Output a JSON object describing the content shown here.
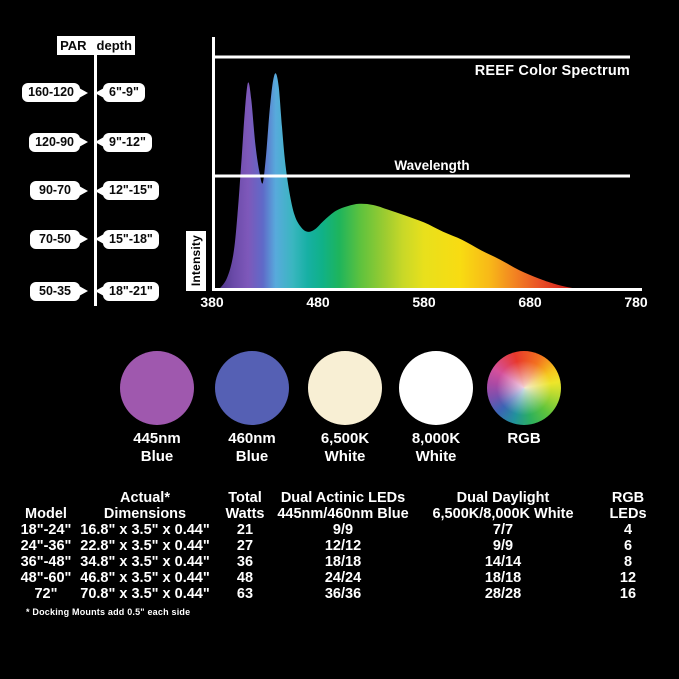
{
  "page": {
    "background": "#000000",
    "text_color": "#ffffff"
  },
  "par_diagram": {
    "header": {
      "par": "PAR",
      "depth": "depth"
    },
    "rows": [
      {
        "par": "160-120",
        "depth": "6\"-9\""
      },
      {
        "par": "120-90",
        "depth": "9\"-12\""
      },
      {
        "par": "90-70",
        "depth": "12\"-15\""
      },
      {
        "par": "70-50",
        "depth": "15\"-18\""
      },
      {
        "par": "50-35",
        "depth": "18\"-21\""
      }
    ]
  },
  "chart_data": {
    "type": "area",
    "title": "REEF Color Spectrum",
    "xlabel": "Wavelength",
    "ylabel": "Intensity",
    "xlim": [
      380,
      780
    ],
    "ylim": [
      0,
      1
    ],
    "x_ticks": [
      380,
      480,
      580,
      680,
      780
    ],
    "grid": false,
    "legend": "none",
    "reference_lines": [
      {
        "intensity": 1.0,
        "label": ""
      },
      {
        "intensity": 0.49,
        "label": "Wavelength"
      }
    ],
    "series": [
      {
        "name": "reef-spectrum-intensity",
        "x": [
          386,
          394,
          400,
          404,
          408,
          411,
          414,
          417,
          421,
          425,
          428,
          431,
          434,
          437,
          440,
          443,
          446,
          449,
          453,
          458,
          464,
          470,
          477,
          486,
          497,
          508,
          519,
          532,
          546,
          562,
          580,
          598,
          616,
          634,
          652,
          670,
          688,
          702,
          716,
          728,
          736
        ],
        "y": [
          0,
          0.05,
          0.15,
          0.32,
          0.57,
          0.77,
          0.89,
          0.82,
          0.62,
          0.5,
          0.46,
          0.58,
          0.75,
          0.88,
          0.93,
          0.87,
          0.7,
          0.55,
          0.42,
          0.32,
          0.27,
          0.25,
          0.26,
          0.3,
          0.34,
          0.36,
          0.37,
          0.365,
          0.345,
          0.32,
          0.29,
          0.25,
          0.215,
          0.17,
          0.13,
          0.085,
          0.05,
          0.028,
          0.012,
          0.004,
          0
        ]
      }
    ],
    "gradient_stops": [
      [
        0.0,
        "#3f2a78"
      ],
      [
        0.05,
        "#6a4aa8"
      ],
      [
        0.085,
        "#7e58ba"
      ],
      [
        0.12,
        "#5f6ac8"
      ],
      [
        0.15,
        "#58aadc"
      ],
      [
        0.19,
        "#3ab6c0"
      ],
      [
        0.225,
        "#17b0a4"
      ],
      [
        0.26,
        "#10b188"
      ],
      [
        0.3,
        "#1eb45c"
      ],
      [
        0.35,
        "#5ec23e"
      ],
      [
        0.41,
        "#9ecc30"
      ],
      [
        0.45,
        "#c8d828"
      ],
      [
        0.5,
        "#e8e01c"
      ],
      [
        0.585,
        "#f8dc12"
      ],
      [
        0.655,
        "#f8b818"
      ],
      [
        0.715,
        "#f28222"
      ],
      [
        0.775,
        "#e84f26"
      ],
      [
        0.82,
        "#da2d1f"
      ],
      [
        0.9,
        "#c01616"
      ]
    ],
    "axis_color": "#ffffff"
  },
  "led_circles": [
    {
      "label_line1": "445nm",
      "label_line2": "Blue",
      "color": "#9f58ae",
      "type": "solid"
    },
    {
      "label_line1": "460nm",
      "label_line2": "Blue",
      "color": "#5560b4",
      "type": "solid"
    },
    {
      "label_line1": "6,500K",
      "label_line2": "White",
      "color": "#f8efd4",
      "type": "solid"
    },
    {
      "label_line1": "8,000K",
      "label_line2": "White",
      "color": "#ffffff",
      "type": "solid"
    },
    {
      "label_line1": "RGB",
      "label_line2": "",
      "color": "color-wheel",
      "type": "wheel"
    }
  ],
  "spec_table": {
    "headers": [
      {
        "line1": "",
        "line2": "Model"
      },
      {
        "line1": "Actual*",
        "line2": "Dimensions"
      },
      {
        "line1": "Total",
        "line2": "Watts"
      },
      {
        "line1": "Dual Actinic LEDs",
        "line2": "445nm/460nm Blue"
      },
      {
        "line1": "Dual Daylight",
        "line2": "6,500K/8,000K White"
      },
      {
        "line1": "RGB",
        "line2": "LEDs"
      }
    ],
    "rows": [
      [
        "18\"-24\"",
        "16.8\" x 3.5\" x 0.44\"",
        "21",
        "9/9",
        "7/7",
        "4"
      ],
      [
        "24\"-36\"",
        "22.8\" x 3.5\" x 0.44\"",
        "27",
        "12/12",
        "9/9",
        "6"
      ],
      [
        "36\"-48\"",
        "34.8\" x 3.5\" x 0.44\"",
        "36",
        "18/18",
        "14/14",
        "8"
      ],
      [
        "48\"-60\"",
        "46.8\" x 3.5\" x 0.44\"",
        "48",
        "24/24",
        "18/18",
        "12"
      ],
      [
        "72\"",
        "70.8\" x 3.5\" x 0.44\"",
        "63",
        "36/36",
        "28/28",
        "16"
      ]
    ],
    "footnote": "* Docking Mounts add 0.5\" each side"
  }
}
